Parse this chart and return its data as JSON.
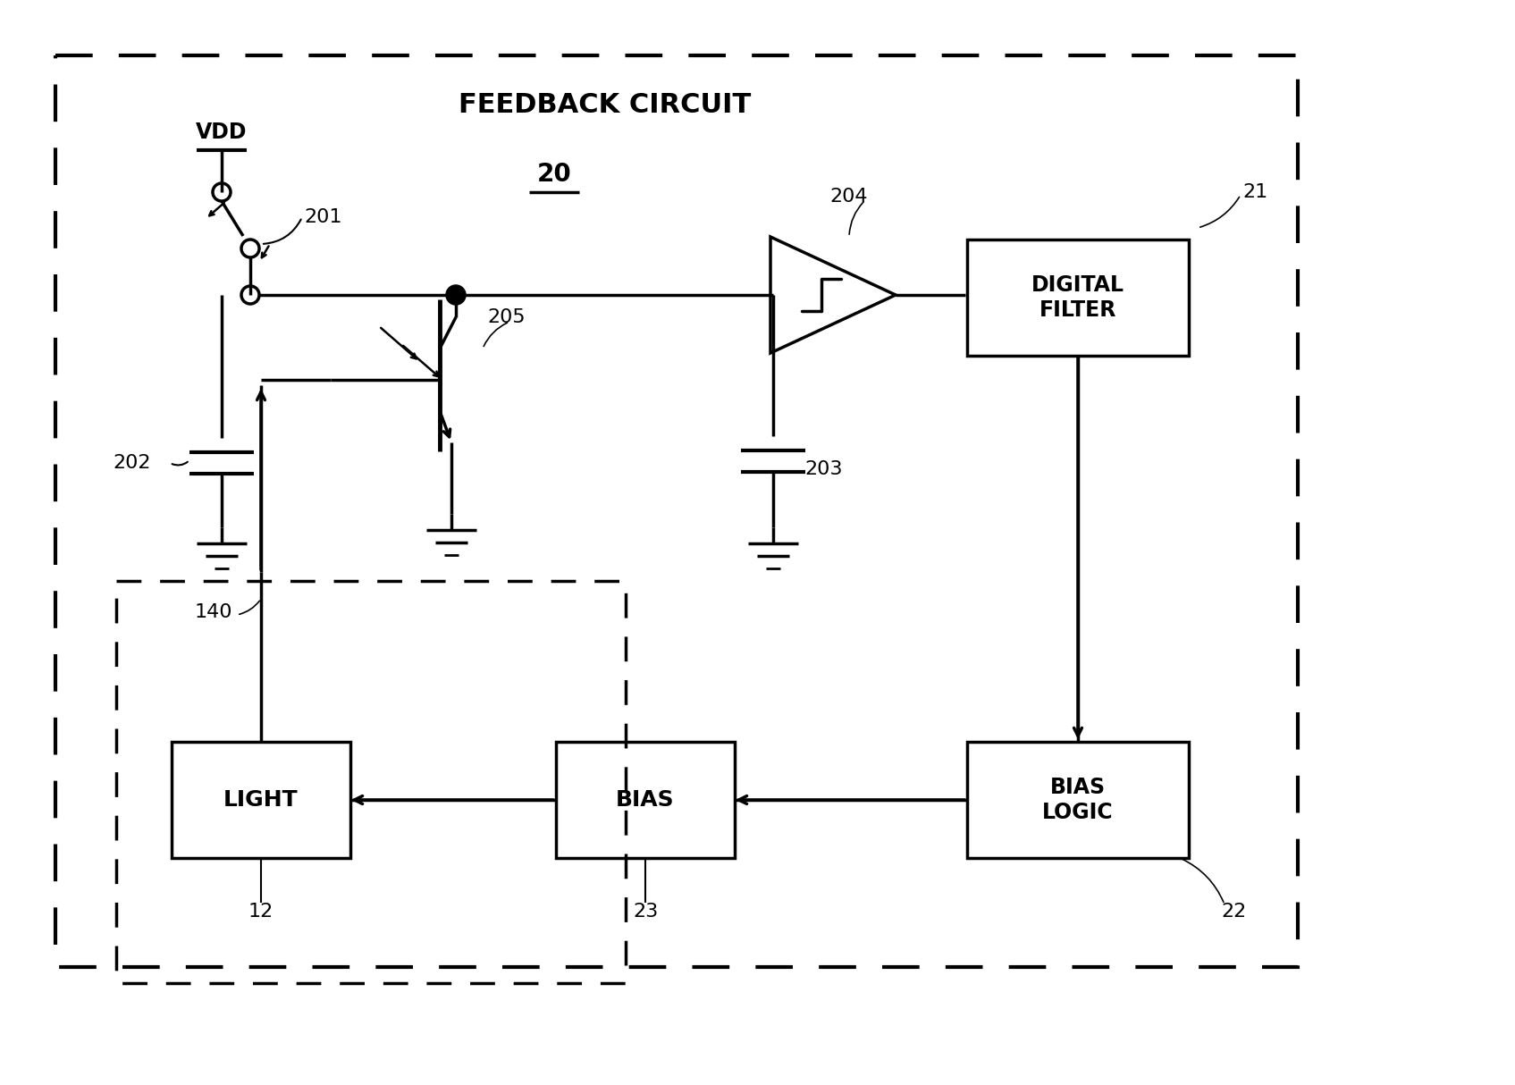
{
  "bg_color": "#ffffff",
  "title": "FEEDBACK CIRCUIT",
  "label_20": "20",
  "label_21": "21",
  "label_22": "22",
  "label_23": "23",
  "label_12": "12",
  "label_140": "140",
  "label_201": "201",
  "label_202": "202",
  "label_203": "203",
  "label_204": "204",
  "label_205": "205",
  "label_VDD": "VDD",
  "box_light": "LIGHT",
  "box_bias": "BIAS",
  "box_bias_logic": "BIAS\nLOGIC",
  "box_digital_filter": "DIGITAL\nFILTER",
  "figsize": [
    16.95,
    12.14
  ],
  "dpi": 100
}
